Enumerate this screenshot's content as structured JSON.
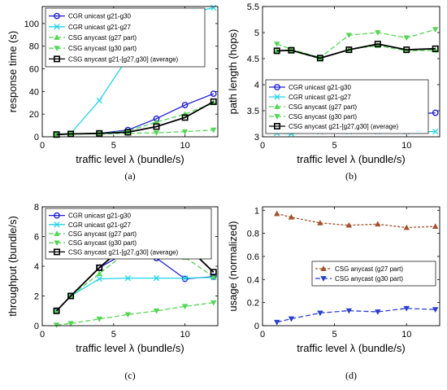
{
  "colors": {
    "cgr_g30": "#1f1fd6",
    "cgr_g27": "#22d3e6",
    "csg_g27": "#55d655",
    "csg_g30": "#55d655",
    "csg_avg": "#000000",
    "usage_g27": "#a0522d",
    "usage_g30": "#2a3fd0"
  },
  "chart_data": [
    {
      "type": "line",
      "panel_label": "(a)",
      "xlabel": "traffic level λ (bundle/s)",
      "ylabel": "response time (s)",
      "xlim": [
        0,
        12.3
      ],
      "ylim": [
        0,
        115
      ],
      "xticks": [
        0,
        5,
        10
      ],
      "yticks": [
        0,
        20,
        40,
        60,
        80,
        100
      ],
      "legend_position": "top-left",
      "series": [
        {
          "name": "CGR unicast g21-g30",
          "color_key": "cgr_g30",
          "marker": "circle",
          "dash": "none",
          "x": [
            1,
            2,
            4,
            6,
            8,
            10,
            12
          ],
          "y": [
            2,
            2.5,
            3,
            6,
            16,
            28,
            38
          ]
        },
        {
          "name": "CGR unicast g21-g27",
          "color_key": "cgr_g27",
          "marker": "x",
          "dash": "none",
          "x": [
            1,
            2,
            4,
            6,
            8,
            10,
            12
          ],
          "y": [
            2,
            3,
            32,
            70,
            95,
            108,
            114
          ]
        },
        {
          "name": "CSG anycast (g27 part)",
          "color_key": "csg_g27",
          "marker": "triangle-up",
          "dash": "6,3",
          "x": [
            1,
            2,
            4,
            6,
            8,
            10,
            12
          ],
          "y": [
            2,
            2.5,
            3,
            5,
            13,
            20,
            30
          ]
        },
        {
          "name": "CSG anycast (g30 part)",
          "color_key": "csg_g30",
          "marker": "triangle-down",
          "dash": "6,3",
          "x": [
            1,
            2,
            4,
            6,
            8,
            10,
            12
          ],
          "y": [
            2,
            2.5,
            2.5,
            3,
            3.5,
            4.5,
            6
          ]
        },
        {
          "name": "CSG anycast g21-[g27,g30] (average)",
          "color_key": "csg_avg",
          "marker": "square",
          "dash": "none",
          "x": [
            1,
            2,
            4,
            6,
            8,
            10,
            12
          ],
          "y": [
            2,
            2.5,
            3,
            4,
            9,
            17,
            31
          ]
        }
      ]
    },
    {
      "type": "line",
      "panel_label": "(b)",
      "xlabel": "traffic level λ (bundle/s)",
      "ylabel": "path length (hops)",
      "xlim": [
        0,
        12.3
      ],
      "ylim": [
        3,
        5.5
      ],
      "xticks": [
        0,
        5,
        10
      ],
      "yticks": [
        3,
        3.5,
        4,
        4.5,
        5,
        5.5
      ],
      "ytick_labels": [
        "3",
        "3.5",
        "4",
        "4.5",
        "5",
        "5.5"
      ],
      "legend_position": "bottom-left",
      "series": [
        {
          "name": "CGR unicast g21-g30",
          "color_key": "cgr_g30",
          "marker": "circle",
          "dash": "none",
          "x": [
            1,
            2,
            4,
            6,
            8,
            10,
            12
          ],
          "y": [
            3.48,
            3.47,
            3.47,
            3.46,
            3.52,
            3.43,
            3.46
          ]
        },
        {
          "name": "CGR unicast g21-g27",
          "color_key": "cgr_g27",
          "marker": "x",
          "dash": "none",
          "x": [
            1,
            2,
            4,
            6,
            8,
            10,
            12
          ],
          "y": [
            3.07,
            3.06,
            3.1,
            3.1,
            3.1,
            3.1,
            3.1
          ]
        },
        {
          "name": "CSG anycast (g27 part)",
          "color_key": "csg_g27",
          "marker": "triangle-up",
          "dash": "6,3",
          "x": [
            1,
            2,
            4,
            6,
            8,
            10,
            12
          ],
          "y": [
            4.65,
            4.65,
            4.5,
            4.68,
            4.75,
            4.65,
            4.66
          ]
        },
        {
          "name": "CSG anycast (g30 part)",
          "color_key": "csg_g30",
          "marker": "triangle-down",
          "dash": "6,3",
          "x": [
            1,
            2,
            4,
            6,
            8,
            10,
            12
          ],
          "y": [
            4.78,
            4.68,
            4.52,
            4.95,
            5.0,
            4.9,
            5.06
          ]
        },
        {
          "name": "CSG anycast g21-[g27,g30] (average)",
          "color_key": "csg_avg",
          "marker": "square",
          "dash": "none",
          "x": [
            1,
            2,
            4,
            6,
            8,
            10,
            12
          ],
          "y": [
            4.65,
            4.66,
            4.51,
            4.67,
            4.78,
            4.67,
            4.69
          ]
        }
      ]
    },
    {
      "type": "line",
      "panel_label": "(c)",
      "xlabel": "traffic level λ (bundle/s)",
      "ylabel": "throughput (bundle/s)",
      "xlim": [
        0,
        12.3
      ],
      "ylim": [
        0,
        8
      ],
      "xticks": [
        0,
        5,
        10
      ],
      "yticks": [
        0,
        2,
        4,
        6,
        8
      ],
      "legend_position": "top-left",
      "series": [
        {
          "name": "CGR unicast g21-g30",
          "color_key": "cgr_g30",
          "marker": "circle",
          "dash": "none",
          "x": [
            1,
            2,
            4,
            6,
            8,
            10,
            12
          ],
          "y": [
            1,
            2,
            3.9,
            5.0,
            4.55,
            3.15,
            3.3
          ]
        },
        {
          "name": "CGR unicast g21-g27",
          "color_key": "cgr_g27",
          "marker": "x",
          "dash": "none",
          "x": [
            1,
            2,
            4,
            6,
            8,
            10,
            12
          ],
          "y": [
            1,
            2,
            3.15,
            3.2,
            3.2,
            3.2,
            3.25
          ]
        },
        {
          "name": "CSG anycast (g27 part)",
          "color_key": "csg_g27",
          "marker": "triangle-up",
          "dash": "6,3",
          "x": [
            1,
            2,
            4,
            6,
            8,
            10,
            12
          ],
          "y": [
            1,
            2,
            3.5,
            5.0,
            6.0,
            4.6,
            3.3
          ]
        },
        {
          "name": "CSG anycast (g30 part)",
          "color_key": "csg_g30",
          "marker": "triangle-down",
          "dash": "6,3",
          "x": [
            1,
            2,
            4,
            6,
            8,
            10,
            12
          ],
          "y": [
            0.05,
            0.15,
            0.45,
            0.75,
            1.0,
            1.3,
            1.55
          ]
        },
        {
          "name": "CSG anycast g21-[g27,g30] (average)",
          "color_key": "csg_avg",
          "marker": "square",
          "dash": "none",
          "x": [
            1,
            2,
            4,
            6,
            8,
            10,
            12
          ],
          "y": [
            1,
            2,
            3.9,
            5.55,
            6.8,
            5.45,
            3.6
          ]
        }
      ]
    },
    {
      "type": "line",
      "panel_label": "(d)",
      "xlabel": "traffic level λ (bundle/s)",
      "ylabel": "usage (normalized)",
      "xlim": [
        0,
        12.3
      ],
      "ylim": [
        0,
        1.03
      ],
      "xticks": [
        0,
        5,
        10
      ],
      "yticks": [
        0,
        0.2,
        0.4,
        0.6,
        0.8,
        1
      ],
      "ytick_labels": [
        "0",
        "0.2",
        "0.4",
        "0.6",
        "0.8",
        "1"
      ],
      "legend_position": "middle-right",
      "series": [
        {
          "name": "CSG anycast (g27 part)",
          "color_key": "usage_g27",
          "marker": "triangle-up",
          "dash": "3,2",
          "x": [
            1,
            2,
            4,
            6,
            8,
            10,
            12
          ],
          "y": [
            0.97,
            0.94,
            0.89,
            0.87,
            0.88,
            0.85,
            0.86
          ]
        },
        {
          "name": "CSG anycast (g30 part)",
          "color_key": "usage_g30",
          "marker": "triangle-down",
          "dash": "6,3",
          "x": [
            1,
            2,
            4,
            6,
            8,
            10,
            12
          ],
          "y": [
            0.03,
            0.06,
            0.11,
            0.13,
            0.12,
            0.15,
            0.14
          ]
        }
      ]
    }
  ]
}
